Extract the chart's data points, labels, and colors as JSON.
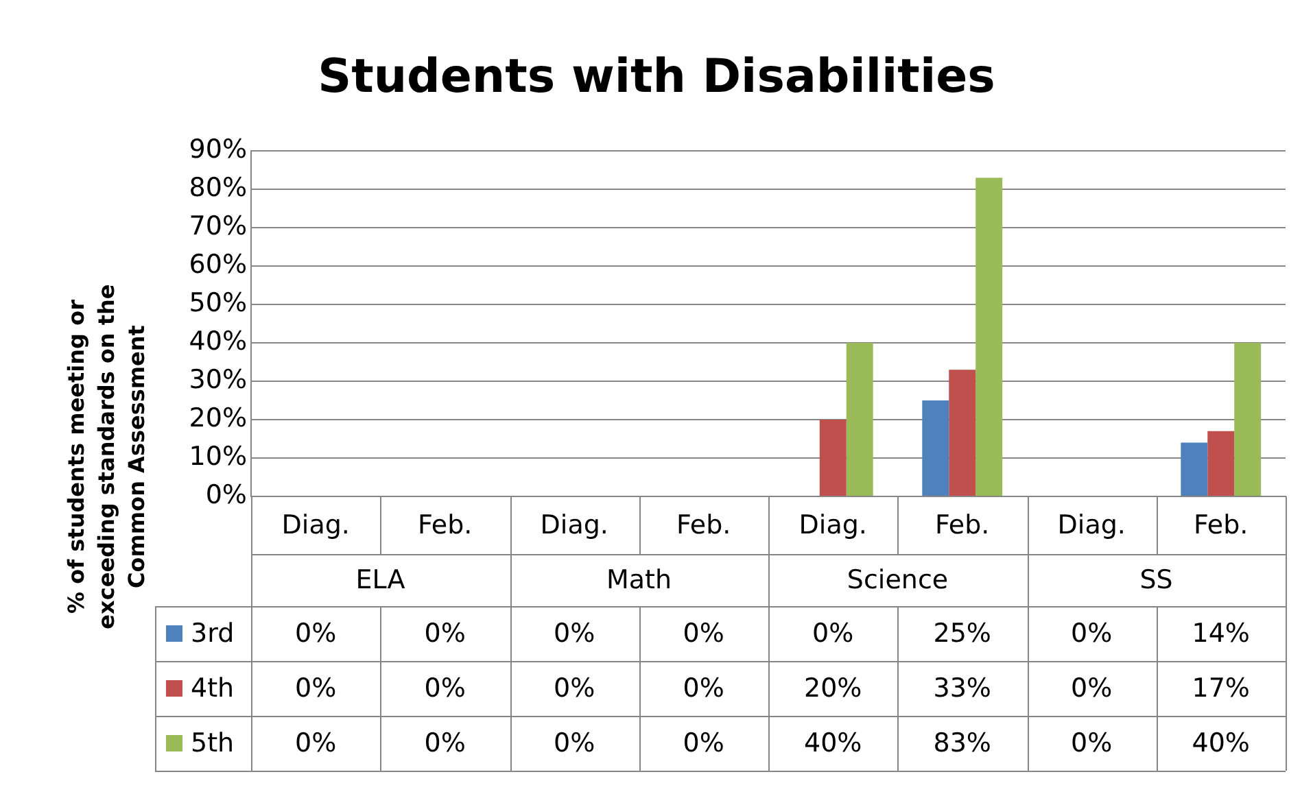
{
  "chart_data": {
    "type": "bar",
    "title": "Students with Disabilities",
    "ylabel": "% of students meeting or exceeding standards on the Common Assessment",
    "categories": [
      "Diag.",
      "Feb.",
      "Diag.",
      "Feb.",
      "Diag.",
      "Feb.",
      "Diag.",
      "Feb."
    ],
    "annotations": [
      "ELA",
      "Math",
      "Science",
      "SS"
    ],
    "series": [
      {
        "name": "3rd",
        "color": "#4f81bd",
        "values": [
          0,
          0,
          0,
          0,
          0,
          25,
          0,
          14
        ],
        "value_labels": [
          "0%",
          "0%",
          "0%",
          "0%",
          "0%",
          "25%",
          "0%",
          "14%"
        ]
      },
      {
        "name": "4th",
        "color": "#c0504d",
        "values": [
          0,
          0,
          0,
          0,
          20,
          33,
          0,
          17
        ],
        "value_labels": [
          "0%",
          "0%",
          "0%",
          "0%",
          "20%",
          "33%",
          "0%",
          "17%"
        ]
      },
      {
        "name": "5th",
        "color": "#9bbb59",
        "values": [
          0,
          0,
          0,
          0,
          40,
          83,
          0,
          40
        ],
        "value_labels": [
          "0%",
          "0%",
          "0%",
          "0%",
          "40%",
          "83%",
          "0%",
          "40%"
        ]
      }
    ],
    "ylim": [
      0,
      90
    ],
    "yticks": [
      {
        "value": 0,
        "label": "0%"
      },
      {
        "value": 10,
        "label": "10%"
      },
      {
        "value": 20,
        "label": "20%"
      },
      {
        "value": 30,
        "label": "30%"
      },
      {
        "value": 40,
        "label": "40%"
      },
      {
        "value": 50,
        "label": "50%"
      },
      {
        "value": 60,
        "label": "60%"
      },
      {
        "value": 70,
        "label": "70%"
      },
      {
        "value": 80,
        "label": "80%"
      },
      {
        "value": 90,
        "label": "90%"
      }
    ],
    "grid": "y",
    "legend": "bottom left",
    "data_labels": true
  }
}
